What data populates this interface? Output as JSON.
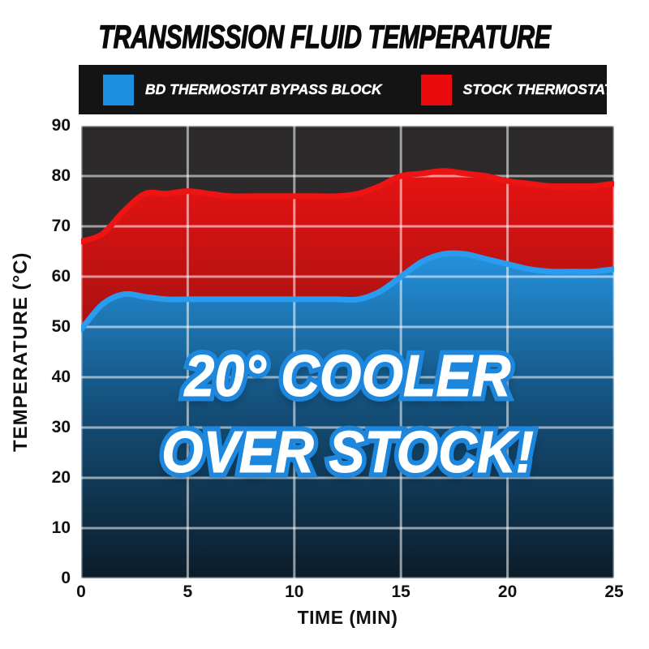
{
  "page": {
    "title": "TRANSMISSION FLUID TEMPERATURE"
  },
  "legend": {
    "items": [
      {
        "label": "BD THERMOSTAT BYPASS BLOCK",
        "color": "#1e8fe0"
      },
      {
        "label": "STOCK THERMOSTAT",
        "color": "#ea0c0c"
      }
    ]
  },
  "overlay": {
    "line1": "20° COOLER",
    "line2": "OVER STOCK!",
    "text_color": "#ffffff",
    "outline_color": "#1d87dd"
  },
  "chart_data": {
    "type": "area",
    "title": "TRANSMISSION FLUID TEMPERATURE",
    "xlabel": "TIME (MIN)",
    "ylabel": "TEMPERATURE (°C)",
    "xlim": [
      0,
      25
    ],
    "ylim": [
      0,
      90
    ],
    "x_ticks": [
      0,
      5,
      10,
      15,
      20,
      25
    ],
    "y_ticks": [
      0,
      10,
      20,
      30,
      40,
      50,
      60,
      70,
      80,
      90
    ],
    "grid": true,
    "grid_color": "#ffffff",
    "plot_bg": "#2c2a2a",
    "legend_position": "top",
    "x": [
      0,
      1,
      2,
      3,
      4,
      5,
      6,
      7,
      8,
      9,
      10,
      11,
      12,
      13,
      14,
      15,
      16,
      17,
      18,
      19,
      20,
      21,
      22,
      23,
      24,
      25
    ],
    "series": [
      {
        "name": "STOCK THERMOSTAT",
        "color": "#ee1414",
        "fill_stops": [
          [
            "0%",
            "#e81212"
          ],
          [
            "55%",
            "#8c1212"
          ],
          [
            "100%",
            "#3f0b0b"
          ]
        ],
        "values": [
          67,
          68.5,
          73,
          76.5,
          76.5,
          77,
          76.5,
          76,
          76,
          76,
          76,
          76,
          76,
          76.5,
          78,
          80,
          80.5,
          81,
          80.5,
          80,
          79,
          78.5,
          78,
          78,
          78,
          78.5
        ]
      },
      {
        "name": "BD THERMOSTAT BYPASS BLOCK",
        "color": "#2a9cf0",
        "fill_stops": [
          [
            "0%",
            "#2492dd"
          ],
          [
            "45%",
            "#15527e"
          ],
          [
            "100%",
            "#0b1c28"
          ]
        ],
        "values": [
          49.5,
          54.5,
          56.5,
          56,
          55.5,
          55.5,
          55.5,
          55.5,
          55.5,
          55.5,
          55.5,
          55.5,
          55.5,
          55.5,
          57,
          60,
          63,
          64.5,
          64.5,
          63.5,
          62.5,
          61.5,
          61,
          61,
          61,
          61.5
        ]
      }
    ]
  }
}
